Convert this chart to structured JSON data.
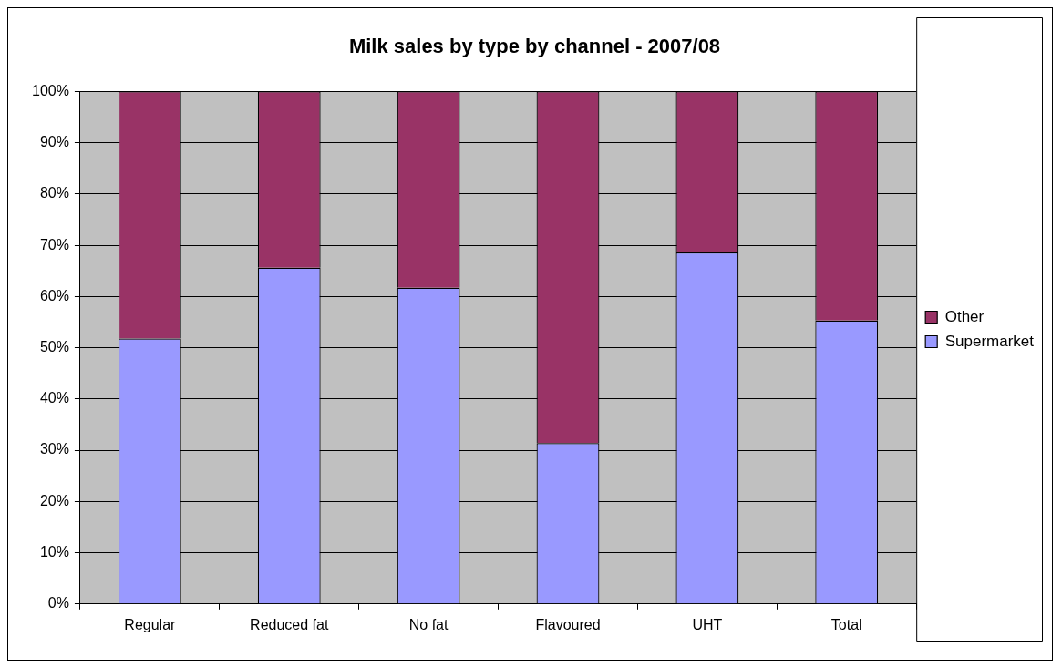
{
  "chart_data": {
    "type": "bar",
    "title": "Milk sales by type by channel - 2007/08",
    "categories": [
      "Regular",
      "Reduced fat",
      "No fat",
      "Flavoured",
      "UHT",
      "Total"
    ],
    "stacked": true,
    "series": [
      {
        "name": "Supermarket",
        "color": "#9999ff",
        "values": [
          51.8,
          65.6,
          61.7,
          31.4,
          68.6,
          55.3
        ]
      },
      {
        "name": "Other",
        "color": "#993366",
        "values": [
          48.2,
          34.4,
          38.3,
          68.6,
          31.4,
          44.7
        ]
      }
    ],
    "ylim": [
      0,
      100
    ],
    "yticks": [
      {
        "value": 0,
        "label": "0%"
      },
      {
        "value": 10,
        "label": "10%"
      },
      {
        "value": 20,
        "label": "20%"
      },
      {
        "value": 30,
        "label": "30%"
      },
      {
        "value": 40,
        "label": "40%"
      },
      {
        "value": 50,
        "label": "50%"
      },
      {
        "value": 60,
        "label": "60%"
      },
      {
        "value": 70,
        "label": "70%"
      },
      {
        "value": 80,
        "label": "80%"
      },
      {
        "value": 90,
        "label": "90%"
      },
      {
        "value": 100,
        "label": "100%"
      }
    ],
    "grid": "y",
    "legend": "right"
  }
}
